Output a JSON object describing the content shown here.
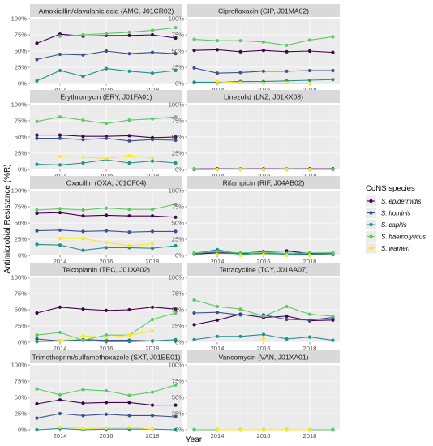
{
  "chart_data": {
    "type": "line",
    "xlabel": "Year",
    "ylabel": "Antimicrobial Resistance (%R)",
    "x": [
      2013,
      2014,
      2015,
      2016,
      2017,
      2018,
      2019
    ],
    "x_ticks": [
      "2014",
      "2016",
      "2018"
    ],
    "xlim": [
      2012.7,
      2019.3
    ],
    "ylim": [
      0,
      100
    ],
    "y_ticks": [
      "0%",
      "25%",
      "50%",
      "75%",
      "100%"
    ],
    "grid": true,
    "legend": {
      "title": "CoNS species",
      "placement": "right",
      "entries": [
        {
          "name": "S. epidermidis",
          "color": "#440154"
        },
        {
          "name": "S. hominis",
          "color": "#3b528b"
        },
        {
          "name": "S. capitis",
          "color": "#21918c"
        },
        {
          "name": "S. haemolyticus",
          "color": "#5ec962"
        },
        {
          "name": "S. warneri",
          "color": "#fde725"
        }
      ]
    },
    "panels": [
      {
        "title": "Amoxicillin/clavulanic acid (AMC, J01CR02)",
        "series": [
          {
            "name": "S. epidermidis",
            "values": [
              62,
              76,
              73,
              74,
              74,
              75,
              70
            ]
          },
          {
            "name": "S. hominis",
            "values": [
              37,
              45,
              44,
              50,
              46,
              48,
              46
            ]
          },
          {
            "name": "S. capitis",
            "values": [
              4,
              20,
              11,
              23,
              19,
              16,
              20
            ]
          },
          {
            "name": "S. haemolyticus",
            "values": [
              null,
              73,
              75,
              77,
              79,
              82,
              86
            ]
          },
          {
            "name": "S. warneri",
            "values": [
              null,
              null,
              null,
              null,
              null,
              null,
              null
            ]
          }
        ]
      },
      {
        "title": "Ciprofloxacin (CIP, J01MA02)",
        "series": [
          {
            "name": "S. epidermidis",
            "values": [
              51,
              52,
              49,
              51,
              49,
              50,
              48
            ]
          },
          {
            "name": "S. hominis",
            "values": [
              24,
              16,
              17,
              19,
              19,
              20,
              20
            ]
          },
          {
            "name": "S. capitis",
            "values": [
              2,
              2,
              3,
              3,
              4,
              5,
              6
            ]
          },
          {
            "name": "S. haemolyticus",
            "values": [
              68,
              66,
              66,
              64,
              59,
              67,
              72
            ]
          },
          {
            "name": "S. warneri",
            "values": [
              null,
              3,
              1,
              0,
              1,
              0,
              null
            ]
          }
        ]
      },
      {
        "title": "Erythromycin (ERY, J01FA01)",
        "series": [
          {
            "name": "S. epidermidis",
            "values": [
              53,
              53,
              51,
              51,
              52,
              49,
              50
            ]
          },
          {
            "name": "S. hominis",
            "values": [
              48,
              48,
              46,
              48,
              44,
              46,
              45
            ]
          },
          {
            "name": "S. capitis",
            "values": [
              8,
              7,
              10,
              15,
              10,
              13,
              10
            ]
          },
          {
            "name": "S. haemolyticus",
            "values": [
              74,
              81,
              76,
              71,
              76,
              78,
              81
            ]
          },
          {
            "name": "S. warneri",
            "values": [
              null,
              20,
              19,
              17,
              21,
              18,
              null
            ]
          }
        ]
      },
      {
        "title": "Linezolid (LNZ, J01XX08)",
        "series": [
          {
            "name": "S. epidermidis",
            "values": [
              1,
              1,
              1,
              1,
              1,
              1,
              1
            ]
          },
          {
            "name": "S. hominis",
            "values": [
              0,
              0,
              0,
              0,
              0,
              0,
              0
            ]
          },
          {
            "name": "S. capitis",
            "values": [
              0,
              0,
              0,
              0,
              0,
              0,
              0
            ]
          },
          {
            "name": "S. haemolyticus",
            "values": [
              1,
              0,
              1,
              0,
              1,
              0,
              0
            ]
          },
          {
            "name": "S. warneri",
            "values": [
              null,
              0,
              0,
              0,
              0,
              0,
              null
            ]
          }
        ]
      },
      {
        "title": "Oxacillin (OXA, J01CF04)",
        "series": [
          {
            "name": "S. epidermidis",
            "values": [
              65,
              66,
              61,
              62,
              61,
              61,
              59
            ]
          },
          {
            "name": "S. hominis",
            "values": [
              38,
              39,
              37,
              38,
              36,
              37,
              37
            ]
          },
          {
            "name": "S. capitis",
            "values": [
              17,
              16,
              8,
              12,
              12,
              11,
              15
            ]
          },
          {
            "name": "S. haemolyticus",
            "values": [
              70,
              72,
              70,
              73,
              71,
              71,
              79
            ]
          },
          {
            "name": "S. warneri",
            "values": [
              null,
              26,
              26,
              20,
              15,
              18,
              null
            ]
          }
        ]
      },
      {
        "title": "Rifampicin (RIF, J04AB02)",
        "series": [
          {
            "name": "S. epidermidis",
            "values": [
              2,
              4,
              3,
              6,
              7,
              3,
              4
            ]
          },
          {
            "name": "S. hominis",
            "values": [
              2,
              6,
              2,
              3,
              3,
              2,
              3
            ]
          },
          {
            "name": "S. capitis",
            "values": [
              3,
              9,
              2,
              3,
              2,
              1,
              1
            ]
          },
          {
            "name": "S. haemolyticus",
            "values": [
              4,
              6,
              4,
              5,
              3,
              4,
              4
            ]
          },
          {
            "name": "S. warneri",
            "values": [
              null,
              1,
              0,
              1,
              0,
              0,
              null
            ]
          }
        ]
      },
      {
        "title": "Teicoplanin (TEC, J01XA02)",
        "series": [
          {
            "name": "S. epidermidis",
            "values": [
              45,
              54,
              51,
              49,
              50,
              54,
              51
            ]
          },
          {
            "name": "S. hominis",
            "values": [
              5,
              2,
              4,
              3,
              3,
              2,
              2
            ]
          },
          {
            "name": "S. capitis",
            "values": [
              1,
              2,
              3,
              1,
              1,
              2,
              4
            ]
          },
          {
            "name": "S. haemolyticus",
            "values": [
              11,
              15,
              3,
              11,
              11,
              35,
              45
            ]
          },
          {
            "name": "S. warneri",
            "values": [
              null,
              2,
              10,
              7,
              11,
              17,
              null
            ]
          }
        ]
      },
      {
        "title": "Tetracycline (TCY, J01AA07)",
        "series": [
          {
            "name": "S. epidermidis",
            "values": [
              27,
              34,
              43,
              38,
              40,
              33,
              34
            ]
          },
          {
            "name": "S. hominis",
            "values": [
              45,
              46,
              42,
              42,
              35,
              34,
              38
            ]
          },
          {
            "name": "S. capitis",
            "values": [
              4,
              9,
              9,
              12,
              5,
              8,
              3
            ]
          },
          {
            "name": "S. haemolyticus",
            "values": [
              65,
              55,
              51,
              40,
              55,
              43,
              40
            ]
          },
          {
            "name": "S. warneri",
            "values": [
              null,
              null,
              null,
              5,
              null,
              null,
              null
            ]
          }
        ]
      },
      {
        "title": "Trimethoprim/sulfamethoxazole (SXT, J01EE01)",
        "series": [
          {
            "name": "S. epidermidis",
            "values": [
              40,
              46,
              41,
              42,
              42,
              38,
              38
            ]
          },
          {
            "name": "S. hominis",
            "values": [
              18,
              25,
              22,
              24,
              22,
              22,
              20
            ]
          },
          {
            "name": "S. capitis",
            "values": [
              0,
              2,
              0,
              1,
              1,
              1,
              0
            ]
          },
          {
            "name": "S. haemolyticus",
            "values": [
              63,
              54,
              62,
              60,
              53,
              58,
              69
            ]
          },
          {
            "name": "S. warneri",
            "values": [
              null,
              4,
              2,
              3,
              4,
              1,
              null
            ]
          }
        ]
      },
      {
        "title": "Vancomycin (VAN, J01XA01)",
        "series": [
          {
            "name": "S. epidermidis",
            "values": [
              0,
              0,
              0,
              0,
              0,
              0,
              0
            ]
          },
          {
            "name": "S. hominis",
            "values": [
              0,
              0,
              0,
              0,
              0,
              0,
              0
            ]
          },
          {
            "name": "S. capitis",
            "values": [
              0,
              0,
              0,
              0,
              0,
              0,
              0
            ]
          },
          {
            "name": "S. haemolyticus",
            "values": [
              0,
              0,
              0,
              0,
              0,
              0,
              0
            ]
          },
          {
            "name": "S. warneri",
            "values": [
              null,
              0,
              0,
              0,
              0,
              0,
              null
            ]
          }
        ]
      }
    ]
  }
}
